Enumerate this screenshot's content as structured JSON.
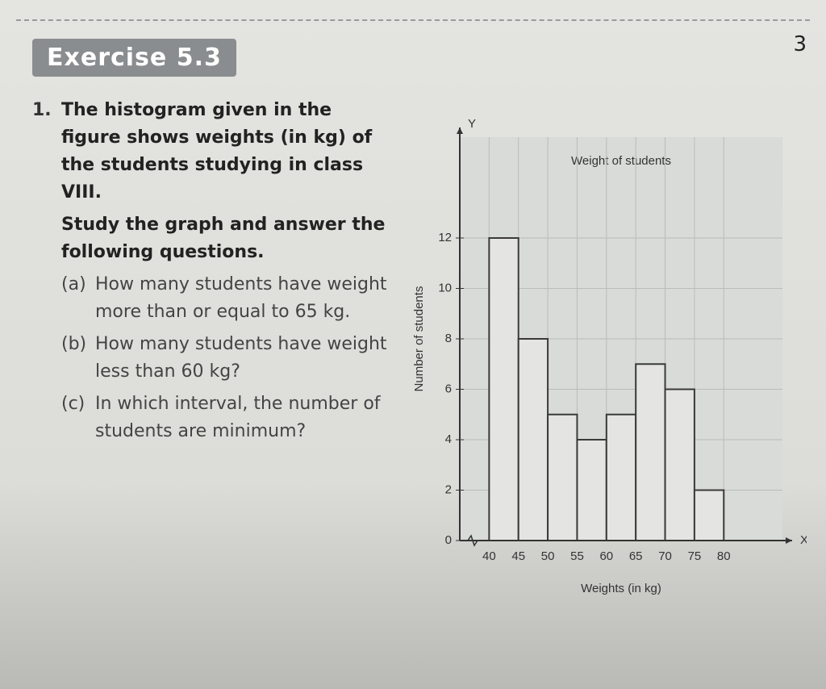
{
  "header": {
    "title": "Exercise 5.3",
    "page_number": "3"
  },
  "question": {
    "number": "1.",
    "text": "The histogram given in the figure shows weights (in kg) of the students studying in class VIII.",
    "instruction": "Study the graph and answer the following questions.",
    "parts": [
      {
        "label": "(a)",
        "text": "How many students have weight more than or equal to 65 kg."
      },
      {
        "label": "(b)",
        "text": "How many students have weight less than 60 kg?"
      },
      {
        "label": "(c)",
        "text": "In which interval, the number of students are minimum?"
      }
    ]
  },
  "chart_data": {
    "type": "histogram",
    "title": "Weight of students",
    "x_label": "Weights (in kg)",
    "y_label": "Number of students",
    "x_axis_letter": "X",
    "y_axis_letter": "Y",
    "bins": [
      40,
      45,
      50,
      55,
      60,
      65,
      70,
      75,
      80
    ],
    "values": [
      12,
      8,
      5,
      4,
      5,
      7,
      6,
      2
    ],
    "color": "#e4e4e2",
    "edge_color": "#3a3a3a",
    "xlim": [
      35,
      90
    ],
    "ylim": [
      0,
      16
    ],
    "xticks": [
      40,
      45,
      50,
      55,
      60,
      65,
      70,
      75,
      80
    ],
    "yticks": [
      0,
      2,
      4,
      6,
      8,
      10,
      12
    ],
    "grid": true
  }
}
